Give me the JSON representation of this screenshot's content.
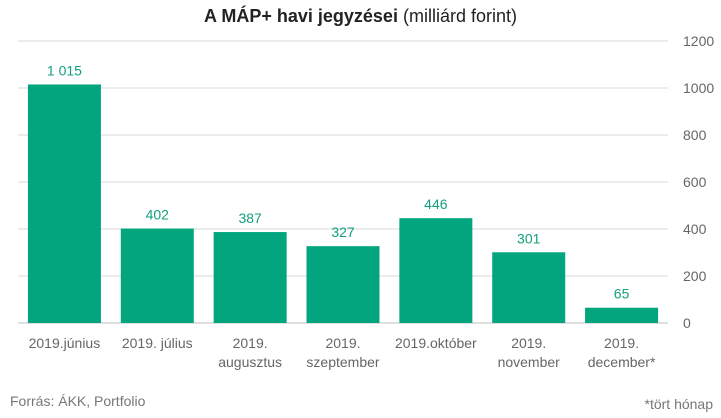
{
  "title": {
    "bold": "A MÁP+ havi jegyzései",
    "rest": " (milliárd forint)"
  },
  "source": "Forrás: ÁKK, Portfolio",
  "note": "*tört hónap",
  "colors": {
    "bar": "#03a57e",
    "label": "#13a07c",
    "grid": "#d9d9d9"
  },
  "chart_data": {
    "type": "bar",
    "title": "A MÁP+ havi jegyzései (milliárd forint)",
    "categories": [
      [
        "2019.június"
      ],
      [
        "2019. július"
      ],
      [
        "2019.",
        "augusztus"
      ],
      [
        "2019.",
        "szeptember"
      ],
      [
        "2019.október"
      ],
      [
        "2019.",
        "november"
      ],
      [
        "2019.",
        "december*"
      ]
    ],
    "values": [
      1015,
      402,
      387,
      327,
      446,
      301,
      65
    ],
    "value_labels": [
      "1 015",
      "402",
      "387",
      "327",
      "446",
      "301",
      "65"
    ],
    "yticks": [
      "0",
      "200",
      "400",
      "600",
      "800",
      "1000",
      "1200"
    ],
    "ylim": [
      0,
      1200
    ],
    "y_axis_side": "right",
    "grid": true
  }
}
